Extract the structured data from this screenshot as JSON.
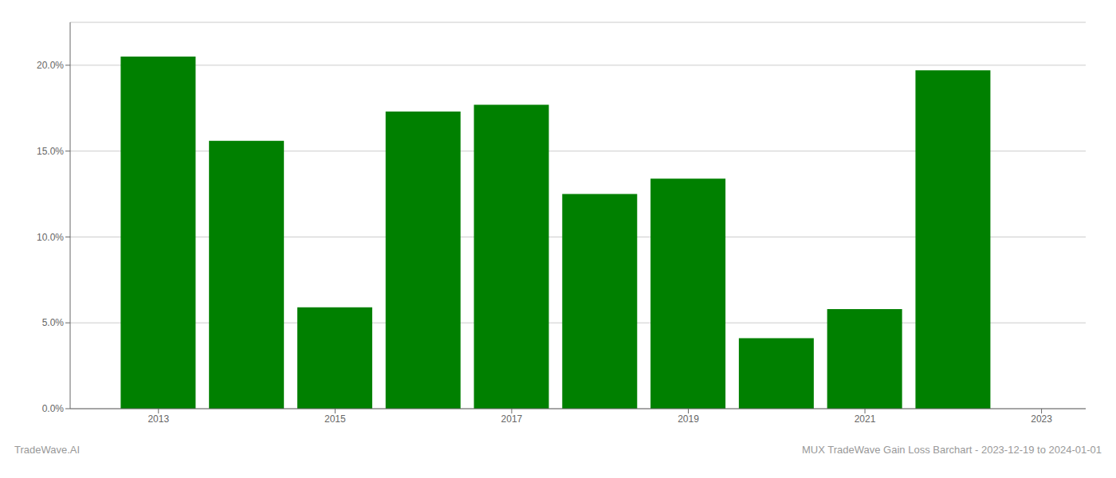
{
  "chart_data": {
    "type": "bar",
    "x": [
      2013,
      2014,
      2015,
      2016,
      2017,
      2018,
      2019,
      2020,
      2021,
      2022
    ],
    "values": [
      0.205,
      0.156,
      0.059,
      0.173,
      0.177,
      0.125,
      0.134,
      0.041,
      0.058,
      0.197
    ],
    "color": "#008000",
    "xlim": [
      2012.0,
      2023.5
    ],
    "xticks": [
      2013,
      2015,
      2017,
      2019,
      2021,
      2023
    ],
    "ylim": [
      0,
      0.225
    ],
    "yticks": [
      {
        "value": 0.0,
        "label": "0.0%"
      },
      {
        "value": 0.05,
        "label": "5.0%"
      },
      {
        "value": 0.1,
        "label": "10.0%"
      },
      {
        "value": 0.15,
        "label": "15.0%"
      },
      {
        "value": 0.2,
        "label": "20.0%"
      }
    ],
    "grid": true,
    "annotations": [
      "TradeWave.AI",
      "MUX TradeWave Gain Loss Barchart - 2023-12-19 to 2024-01-01"
    ]
  }
}
